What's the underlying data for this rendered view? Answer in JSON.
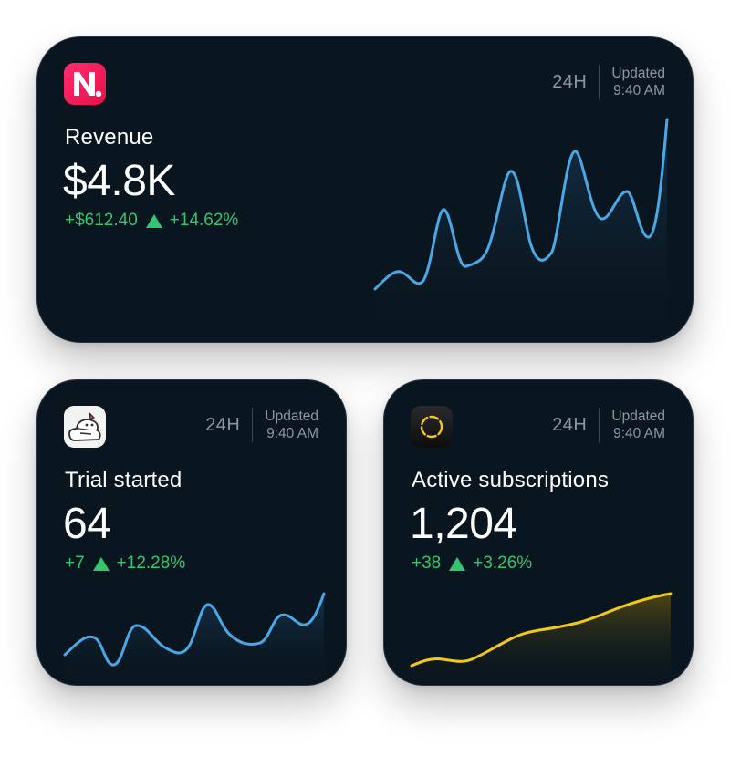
{
  "widgets": {
    "revenue": {
      "title": "Revenue",
      "value": "$4.8K",
      "change_abs": "+$612.40",
      "change_pct": "+14.62%",
      "period": "24H",
      "updated_label": "Updated",
      "updated_time": "9:40 AM",
      "app_icon": "n-logo-icon",
      "line_color": "#4aa8e6"
    },
    "trial": {
      "title": "Trial started",
      "value": "64",
      "change_abs": "+7",
      "change_pct": "+12.28%",
      "period": "24H",
      "updated_label": "Updated",
      "updated_time": "9:40 AM",
      "app_icon": "character-app-icon",
      "line_color": "#4aa8e6"
    },
    "active": {
      "title": "Active subscriptions",
      "value": "1,204",
      "change_abs": "+38",
      "change_pct": "+3.26%",
      "period": "24H",
      "updated_label": "Updated",
      "updated_time": "9:40 AM",
      "app_icon": "ring-app-icon",
      "line_color": "#f2c81a"
    }
  },
  "colors": {
    "positive": "#35c46f",
    "card_bg": "#0a161f",
    "muted_text": "#8b96a0"
  }
}
